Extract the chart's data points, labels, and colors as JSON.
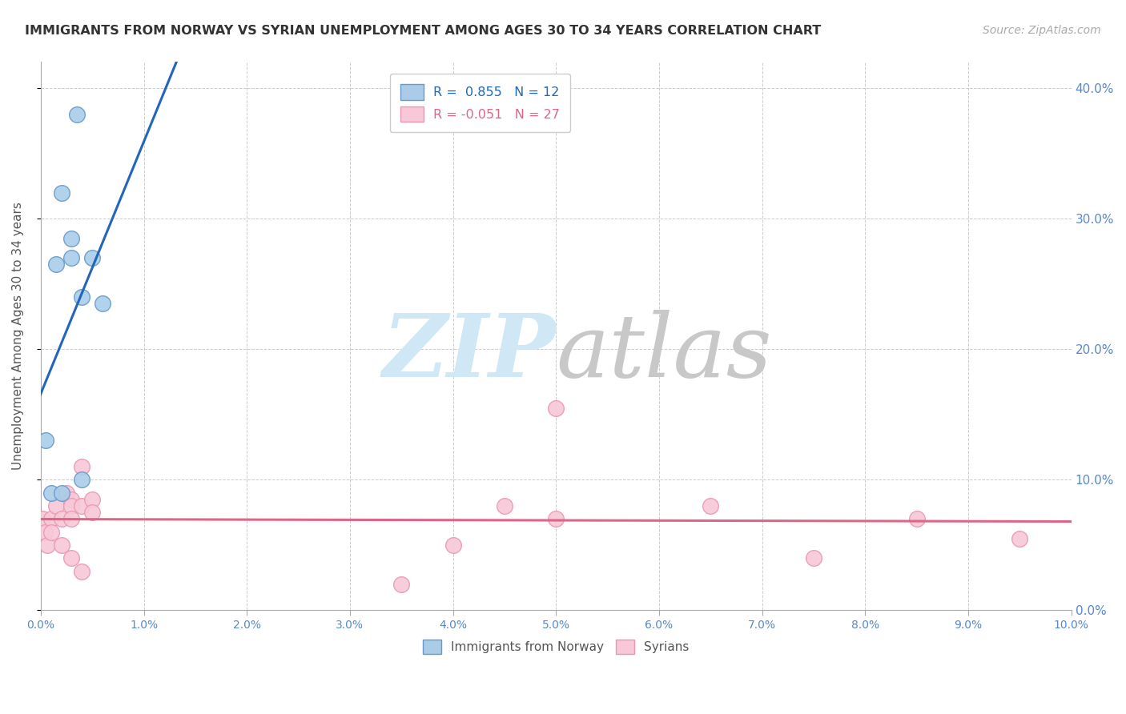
{
  "title": "IMMIGRANTS FROM NORWAY VS SYRIAN UNEMPLOYMENT AMONG AGES 30 TO 34 YEARS CORRELATION CHART",
  "source": "Source: ZipAtlas.com",
  "ylabel": "Unemployment Among Ages 30 to 34 years",
  "xlim": [
    0.0,
    0.1
  ],
  "ylim": [
    0.0,
    0.42
  ],
  "xticks": [
    0.0,
    0.01,
    0.02,
    0.03,
    0.04,
    0.05,
    0.06,
    0.07,
    0.08,
    0.09,
    0.1
  ],
  "yticks": [
    0.0,
    0.1,
    0.2,
    0.3,
    0.4
  ],
  "norway_x": [
    0.0005,
    0.001,
    0.0015,
    0.002,
    0.002,
    0.003,
    0.003,
    0.0035,
    0.004,
    0.004,
    0.005,
    0.006
  ],
  "norway_y": [
    0.13,
    0.09,
    0.265,
    0.09,
    0.32,
    0.285,
    0.27,
    0.38,
    0.24,
    0.1,
    0.27,
    0.235
  ],
  "syria_x": [
    0.0002,
    0.0004,
    0.0006,
    0.001,
    0.001,
    0.0015,
    0.002,
    0.002,
    0.0025,
    0.003,
    0.003,
    0.003,
    0.003,
    0.004,
    0.004,
    0.004,
    0.005,
    0.005,
    0.035,
    0.04,
    0.045,
    0.05,
    0.05,
    0.065,
    0.075,
    0.085,
    0.095
  ],
  "syria_y": [
    0.07,
    0.06,
    0.05,
    0.07,
    0.06,
    0.08,
    0.07,
    0.05,
    0.09,
    0.085,
    0.08,
    0.07,
    0.04,
    0.11,
    0.08,
    0.03,
    0.085,
    0.075,
    0.02,
    0.05,
    0.08,
    0.07,
    0.155,
    0.08,
    0.04,
    0.07,
    0.055
  ],
  "norway_color": "#aacce8",
  "norway_edge_color": "#6699cc",
  "norway_line_color": "#2266bb",
  "syria_color": "#f8c8d8",
  "syria_edge_color": "#e899b0",
  "syria_line_color": "#dd6688",
  "norway_R": 0.855,
  "norway_N": 12,
  "syria_R": -0.051,
  "syria_N": 27,
  "marker_size": 200,
  "background_color": "#ffffff",
  "grid_color": "#cccccc",
  "watermark_zip_color": "#d0e8f5",
  "watermark_atlas_color": "#c8c8c8",
  "left_tick_color": "#888888",
  "right_tick_color": "#5588cc",
  "bottom_tick_color": "#5588cc"
}
